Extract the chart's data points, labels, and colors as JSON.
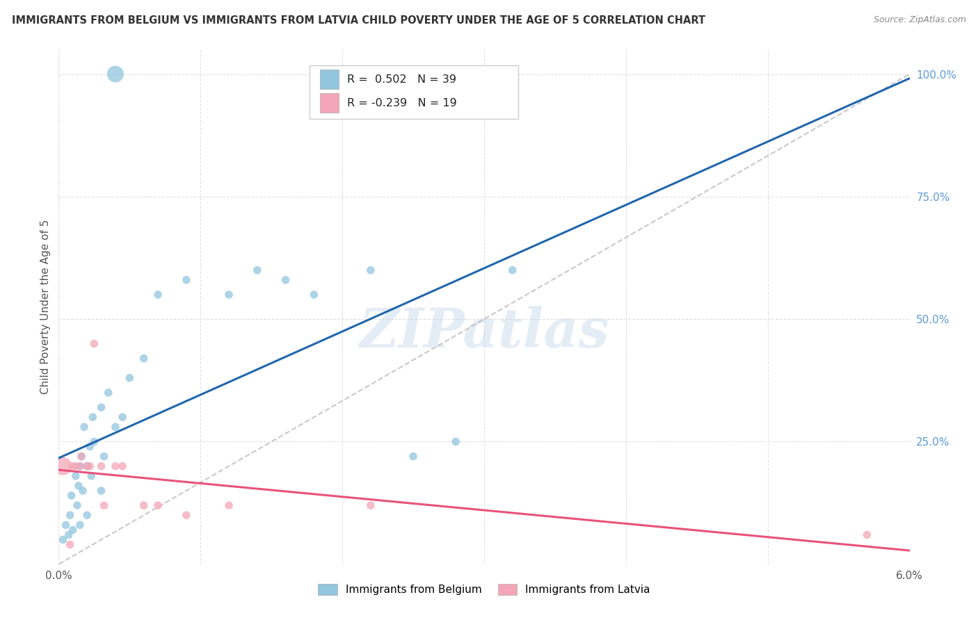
{
  "title": "IMMIGRANTS FROM BELGIUM VS IMMIGRANTS FROM LATVIA CHILD POVERTY UNDER THE AGE OF 5 CORRELATION CHART",
  "source": "Source: ZipAtlas.com",
  "ylabel": "Child Poverty Under the Age of 5",
  "legend_belgium": "Immigrants from Belgium",
  "legend_latvia": "Immigrants from Latvia",
  "R_belgium": 0.502,
  "N_belgium": 39,
  "R_latvia": -0.239,
  "N_latvia": 19,
  "color_belgium": "#92c5de",
  "color_latvia": "#f4a6b8",
  "color_trendline_belgium": "#2166ac",
  "color_trendline_latvia": "#e8527a",
  "xlim": [
    0.0,
    0.06
  ],
  "ylim": [
    0.0,
    1.05
  ],
  "yticks": [
    0.0,
    0.25,
    0.5,
    0.75,
    1.0
  ],
  "ytick_labels": [
    "",
    "25.0%",
    "50.0%",
    "75.0%",
    "100.0%"
  ],
  "belgium_x": [
    0.0003,
    0.0005,
    0.0007,
    0.0008,
    0.0009,
    0.001,
    0.0012,
    0.0013,
    0.0014,
    0.0015,
    0.0015,
    0.0016,
    0.0017,
    0.0018,
    0.002,
    0.002,
    0.0022,
    0.0023,
    0.0024,
    0.0025,
    0.003,
    0.003,
    0.0032,
    0.0035,
    0.004,
    0.0045,
    0.005,
    0.006,
    0.007,
    0.009,
    0.012,
    0.014,
    0.016,
    0.018,
    0.022,
    0.025,
    0.028,
    0.032,
    0.004
  ],
  "belgium_y": [
    0.05,
    0.08,
    0.06,
    0.1,
    0.14,
    0.07,
    0.18,
    0.12,
    0.16,
    0.2,
    0.08,
    0.22,
    0.15,
    0.28,
    0.1,
    0.2,
    0.24,
    0.18,
    0.3,
    0.25,
    0.15,
    0.32,
    0.22,
    0.35,
    0.28,
    0.3,
    0.38,
    0.42,
    0.55,
    0.58,
    0.55,
    0.6,
    0.58,
    0.55,
    0.6,
    0.22,
    0.25,
    0.6,
    1.0
  ],
  "belgium_sizes": [
    70,
    70,
    70,
    70,
    70,
    70,
    70,
    70,
    70,
    70,
    70,
    70,
    70,
    70,
    70,
    70,
    70,
    70,
    70,
    70,
    70,
    70,
    70,
    70,
    70,
    70,
    70,
    70,
    70,
    70,
    70,
    70,
    70,
    70,
    70,
    70,
    70,
    70,
    300
  ],
  "latvia_x": [
    0.0003,
    0.0008,
    0.001,
    0.0012,
    0.0015,
    0.0016,
    0.002,
    0.0022,
    0.0025,
    0.003,
    0.0032,
    0.004,
    0.0045,
    0.006,
    0.007,
    0.009,
    0.012,
    0.022,
    0.057
  ],
  "latvia_y": [
    0.2,
    0.04,
    0.2,
    0.2,
    0.2,
    0.22,
    0.2,
    0.2,
    0.45,
    0.2,
    0.12,
    0.2,
    0.2,
    0.12,
    0.12,
    0.1,
    0.12,
    0.12,
    0.06
  ],
  "latvia_sizes": [
    350,
    70,
    70,
    70,
    70,
    70,
    70,
    70,
    70,
    70,
    70,
    70,
    70,
    70,
    70,
    70,
    70,
    70,
    70
  ],
  "watermark": "ZIPatlas",
  "background_color": "#ffffff",
  "grid_color": "#e0e0e0"
}
